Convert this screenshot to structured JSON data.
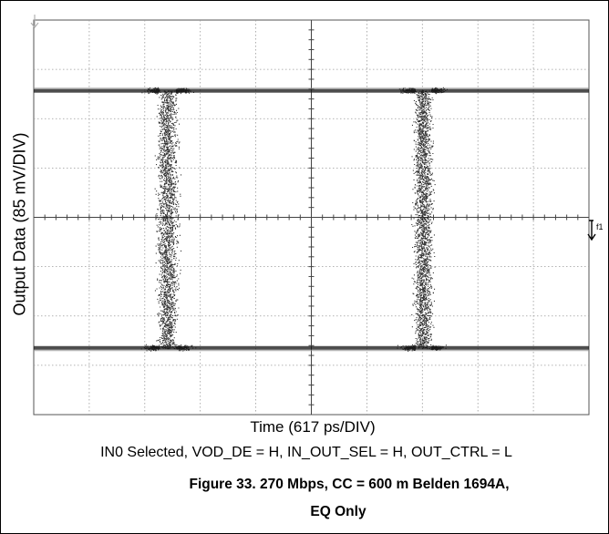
{
  "chart_data": {
    "type": "scatter",
    "plot_kind": "eye diagram (oscilloscope persistence display)",
    "title": "",
    "xlabel": "Time (617 ps/DIV)",
    "ylabel": "Output Data (85 mV/DIV)",
    "x_unit": "ps",
    "y_unit": "mV",
    "x_per_div": 617,
    "y_per_div": 85,
    "x_divisions": 10,
    "y_divisions": 8,
    "xlim": [
      -3085,
      3085
    ],
    "ylim": [
      -340,
      340
    ],
    "grid": true,
    "marker_label": "f1",
    "levels": {
      "high": 218,
      "low": -225
    },
    "crossings": [
      {
        "center": -1600,
        "spread_top": 260,
        "spread_waist": 330
      },
      {
        "center": 1240,
        "spread_top": 250,
        "spread_waist": 300
      }
    ],
    "trace_color": "#111111",
    "grid_color": "#9a9a9a",
    "screen_color": "#ffffff"
  },
  "annotations": {
    "conditions": "IN0 Selected, VOD_DE = H, IN_OUT_SEL = H, OUT_CTRL = L",
    "figure_caption_line1": "Figure 33. 270 Mbps, CC = 600 m Belden 1694A,",
    "figure_caption_line2": "EQ Only"
  }
}
